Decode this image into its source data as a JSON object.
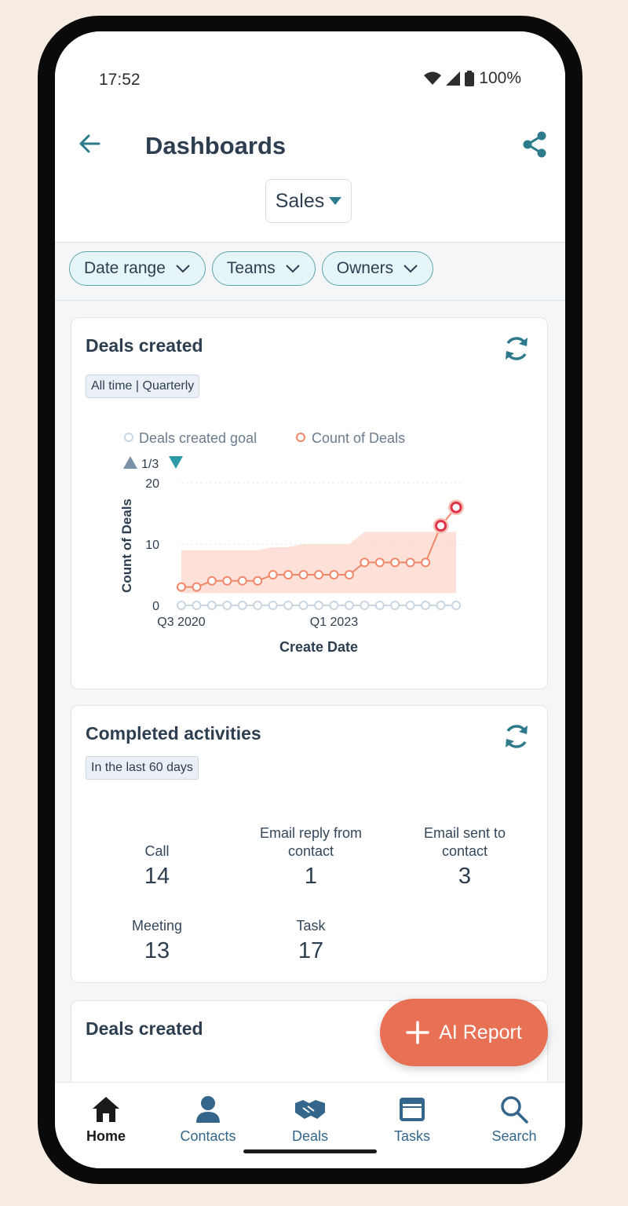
{
  "status": {
    "time": "17:52",
    "battery": "100%"
  },
  "header": {
    "title": "Dashboards",
    "dashboard_selector": "Sales"
  },
  "filters": [
    {
      "label": "Date range"
    },
    {
      "label": "Teams"
    },
    {
      "label": "Owners"
    }
  ],
  "deals_card": {
    "title": "Deals created",
    "tag": "All time | Quarterly",
    "legend": [
      "Deals created goal",
      "Count of Deals"
    ],
    "pager": "1/3"
  },
  "chart_data": {
    "type": "line",
    "title": "",
    "xlabel": "Create Date",
    "ylabel": "Count of Deals",
    "ylim": [
      0,
      20
    ],
    "yticks": [
      "0",
      "10",
      "20"
    ],
    "x_tick_labels": [
      "Q3 2020",
      "Q1 2023"
    ],
    "x_tick_indices": [
      0,
      10
    ],
    "series": [
      {
        "name": "Count of Deals",
        "color": "#f0876a",
        "values": [
          3,
          3,
          4,
          4,
          4,
          4,
          5,
          5,
          5,
          5,
          5,
          5,
          7,
          7,
          7,
          7,
          7,
          13,
          16
        ]
      },
      {
        "name": "Deals created goal",
        "color": "#c9d6e3",
        "values": [
          0,
          0,
          0,
          0,
          0,
          0,
          0,
          0,
          0,
          0,
          0,
          0,
          0,
          0,
          0,
          0,
          0,
          0,
          0
        ]
      }
    ],
    "band": {
      "color": "#fcd9cf",
      "lower": [
        2,
        2,
        2,
        2,
        2,
        2,
        2,
        2,
        2,
        2,
        2,
        2,
        2,
        2,
        2,
        2,
        2,
        2,
        2
      ],
      "upper": [
        9,
        9,
        9,
        9,
        9,
        9,
        9.5,
        9.5,
        10,
        10,
        10,
        10,
        12,
        12,
        12,
        12,
        12,
        12,
        12
      ]
    },
    "highlighted_indices": [
      17,
      18
    ],
    "grid": true
  },
  "activities_card": {
    "title": "Completed activities",
    "tag": "In the last 60 days",
    "stats": [
      {
        "label": "Call",
        "value": "14"
      },
      {
        "label": "Email reply from contact",
        "value": "1"
      },
      {
        "label": "Email sent to contact",
        "value": "3"
      },
      {
        "label": "Meeting",
        "value": "13"
      },
      {
        "label": "Task",
        "value": "17"
      }
    ]
  },
  "deals_card_2": {
    "title": "Deals created"
  },
  "fab": {
    "label": "AI Report"
  },
  "nav": [
    {
      "label": "Home",
      "icon": "home-icon"
    },
    {
      "label": "Contacts",
      "icon": "contacts-icon"
    },
    {
      "label": "Deals",
      "icon": "handshake-icon"
    },
    {
      "label": "Tasks",
      "icon": "tasks-icon"
    },
    {
      "label": "Search",
      "icon": "search-icon"
    }
  ]
}
